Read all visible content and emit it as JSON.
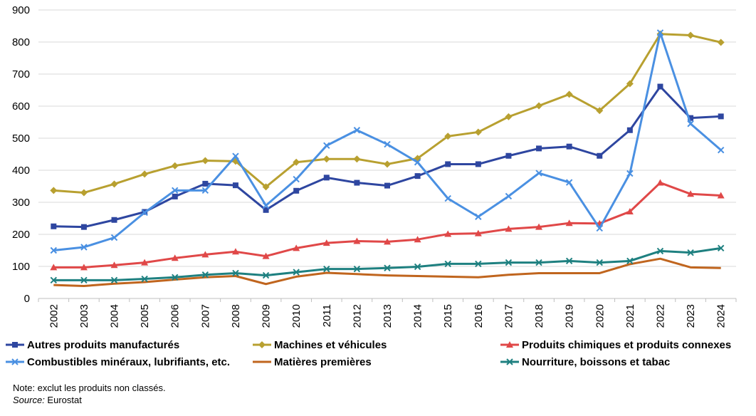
{
  "chart_data": {
    "type": "line",
    "x": [
      "2002",
      "2003",
      "2004",
      "2005",
      "2006",
      "2007",
      "2008",
      "2009",
      "2010",
      "2011",
      "2012",
      "2013",
      "2014",
      "2015",
      "2016",
      "2017",
      "2018",
      "2019",
      "2020",
      "2021",
      "2022",
      "2023",
      "2024"
    ],
    "ylim": [
      0,
      900
    ],
    "yticks": [
      0,
      100,
      200,
      300,
      400,
      500,
      600,
      700,
      800,
      900
    ],
    "grid": true,
    "legend_position": "bottom",
    "series": [
      {
        "name": "Autres produits manufacturés",
        "color": "#2E46A0",
        "marker": "square",
        "values": [
          225,
          223,
          245,
          270,
          318,
          358,
          353,
          276,
          336,
          377,
          361,
          352,
          382,
          419,
          419,
          445,
          468,
          474,
          445,
          525,
          661,
          563,
          568
        ]
      },
      {
        "name": "Machines et véhicules",
        "color": "#B8A030",
        "marker": "diamond",
        "values": [
          337,
          330,
          357,
          388,
          414,
          430,
          428,
          348,
          425,
          435,
          435,
          419,
          437,
          506,
          519,
          567,
          601,
          637,
          586,
          670,
          825,
          821,
          799
        ]
      },
      {
        "name": "Produits chimiques et produits connexes",
        "color": "#E04848",
        "marker": "triangle",
        "values": [
          97,
          97,
          104,
          112,
          126,
          137,
          146,
          132,
          157,
          173,
          179,
          177,
          184,
          201,
          203,
          217,
          223,
          235,
          234,
          271,
          361,
          326,
          321
        ]
      },
      {
        "name": "Combustibles minéraux, lubrifiants, etc.",
        "color": "#4A90E2",
        "marker": "x",
        "values": [
          150,
          160,
          190,
          268,
          337,
          337,
          444,
          290,
          372,
          477,
          525,
          481,
          425,
          312,
          255,
          319,
          391,
          362,
          219,
          390,
          829,
          545,
          463
        ]
      },
      {
        "name": "Matières premières",
        "color": "#C0651E",
        "marker": "none",
        "values": [
          42,
          39,
          46,
          51,
          59,
          66,
          70,
          45,
          68,
          80,
          76,
          72,
          70,
          68,
          66,
          74,
          79,
          79,
          79,
          107,
          124,
          97,
          95
        ]
      },
      {
        "name": "Nourriture, boissons et tabac",
        "color": "#1E8080",
        "marker": "x",
        "values": [
          57,
          57,
          57,
          61,
          66,
          74,
          79,
          72,
          82,
          92,
          92,
          95,
          99,
          108,
          108,
          112,
          112,
          117,
          112,
          117,
          148,
          143,
          157
        ]
      }
    ]
  },
  "note": {
    "text": "Note: exclut les produits non classés.",
    "source_label": "Source:",
    "source_value": " Eurostat"
  }
}
